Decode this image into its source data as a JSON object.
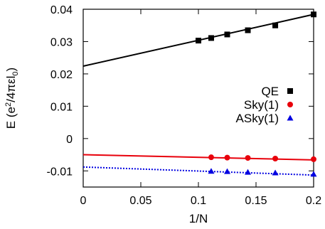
{
  "chart_data": {
    "type": "scatter",
    "xlabel": "1/N",
    "ylabel": {
      "prefix": "E (e",
      "sup": "2",
      "mid": "/4πεl",
      "sub": "0",
      "suffix": ")"
    },
    "xlim": [
      0,
      0.2
    ],
    "ylim": [
      -0.015,
      0.04
    ],
    "xticks": [
      0,
      0.05,
      0.1,
      0.15,
      0.2
    ],
    "xtick_labels": [
      "0",
      "0.05",
      "0.1",
      "0.15",
      "0.2"
    ],
    "yticks": [
      -0.01,
      0,
      0.01,
      0.02,
      0.03,
      0.04
    ],
    "ytick_labels": [
      "-0.01",
      "0",
      "0.01",
      "0.02",
      "0.03",
      "0.04"
    ],
    "grid": false,
    "legend_position": "right",
    "series": [
      {
        "name": "QE",
        "marker": "square",
        "color": "#000000",
        "x": [
          0.1,
          0.1111,
          0.125,
          0.1429,
          0.1667,
          0.2
        ],
        "y": [
          0.0303,
          0.0311,
          0.0322,
          0.0335,
          0.035,
          0.0384
        ],
        "fit": {
          "x": [
            0,
            0.2
          ],
          "y": [
            0.0224,
            0.0384
          ],
          "style": "solid"
        }
      },
      {
        "name": "Sky(1)",
        "marker": "circle",
        "color": "#e8000b",
        "x": [
          0.1111,
          0.125,
          0.1429,
          0.1667,
          0.2
        ],
        "y": [
          -0.0058,
          -0.0059,
          -0.006,
          -0.0062,
          -0.0064
        ],
        "fit": {
          "x": [
            0,
            0.2
          ],
          "y": [
            -0.005,
            -0.0066
          ],
          "style": "solid"
        }
      },
      {
        "name": "ASky(1)",
        "marker": "triangle",
        "color": "#0000e0",
        "x": [
          0.1111,
          0.125,
          0.1429,
          0.1667,
          0.2
        ],
        "y": [
          -0.0101,
          -0.0102,
          -0.0104,
          -0.0106,
          -0.011
        ],
        "fit": {
          "x": [
            0,
            0.2
          ],
          "y": [
            -0.0088,
            -0.0113
          ],
          "style": "dotted"
        }
      }
    ]
  }
}
